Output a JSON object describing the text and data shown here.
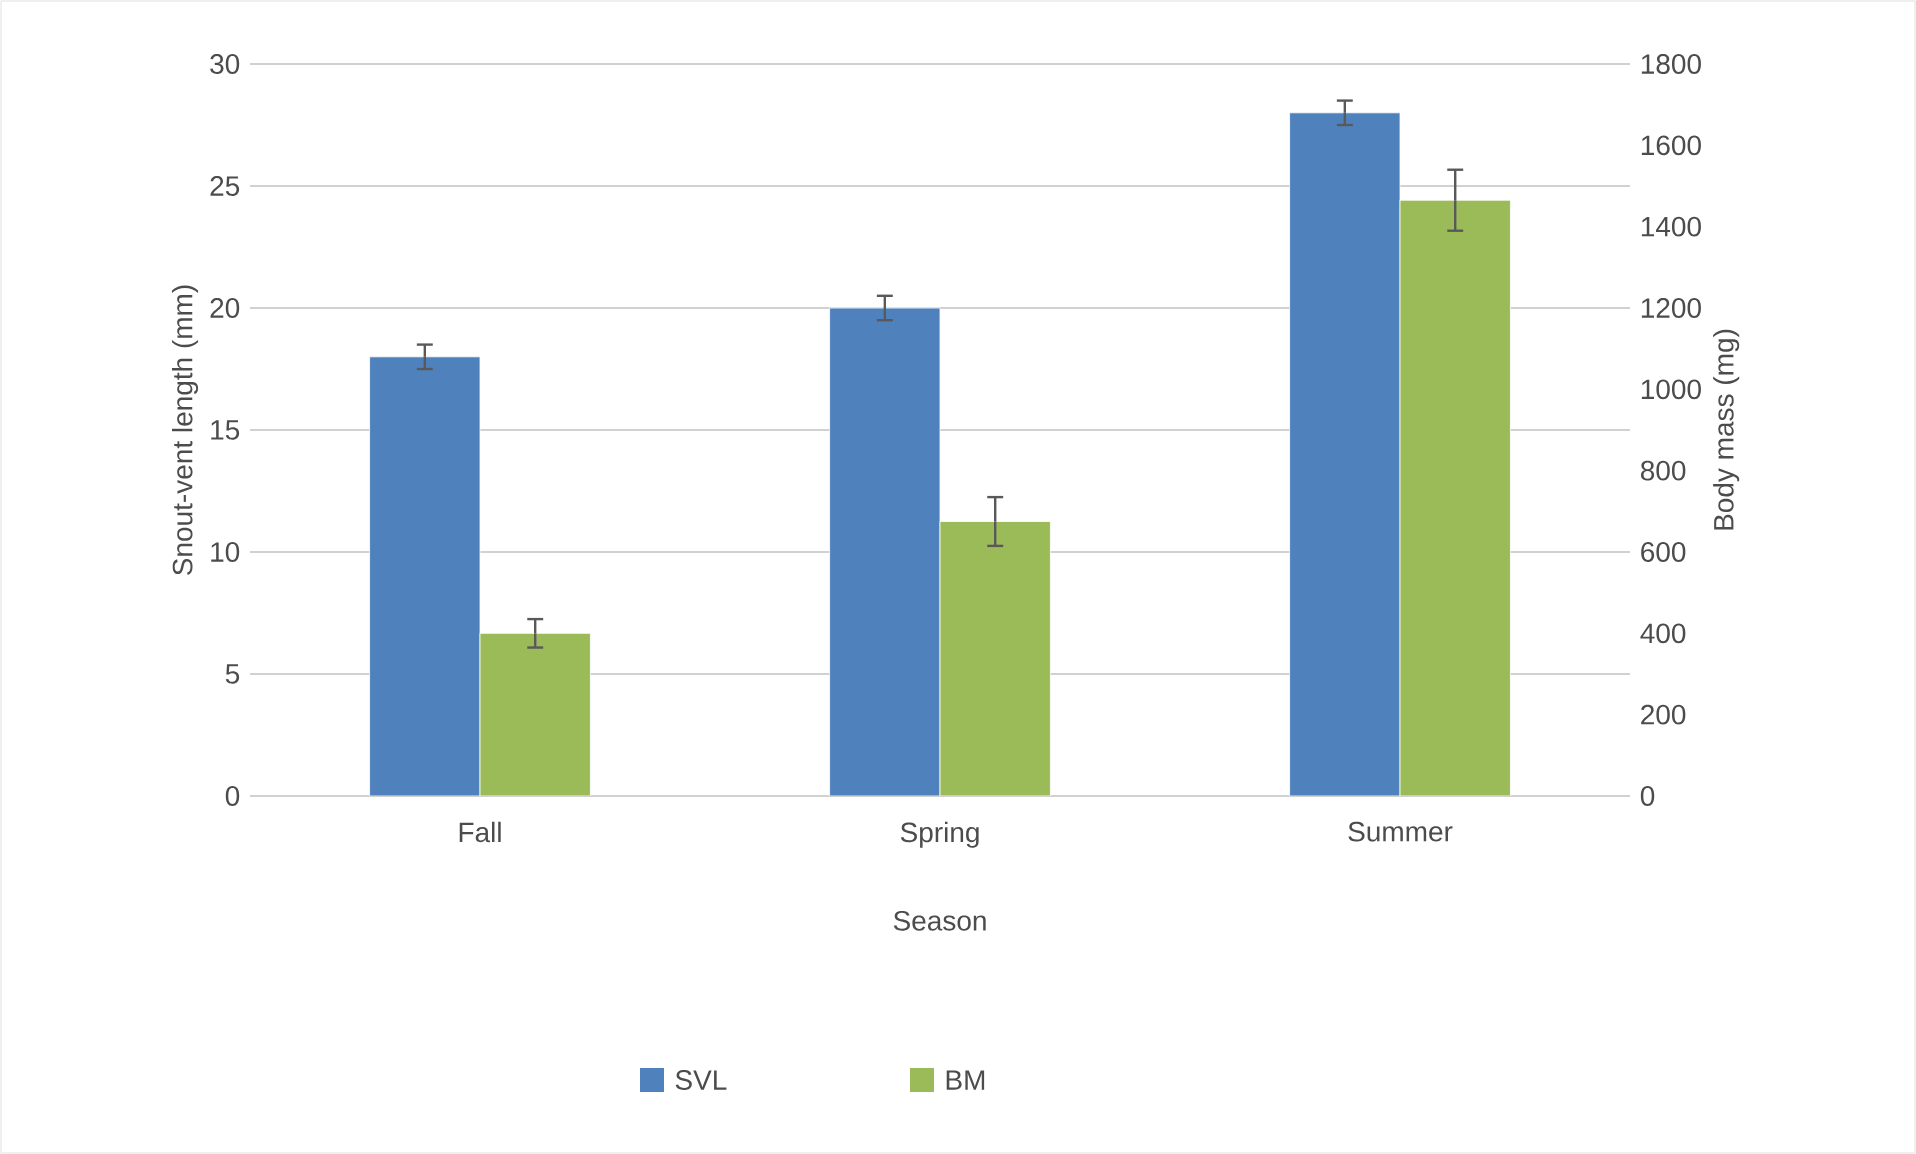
{
  "chart_data": {
    "type": "bar",
    "xlabel": "Season",
    "ylabel": "Snout-vent length (mm)",
    "y2label": "Body mass (mg)",
    "categories": [
      "Fall",
      "Spring",
      "Summer"
    ],
    "series": [
      {
        "name": "SVL",
        "color": "#4f81bd",
        "values": [
          18,
          20,
          28
        ],
        "errors": [
          0.5,
          0.5,
          0.5
        ]
      },
      {
        "name": "BM",
        "color": "#9bbb59",
        "axis": "y2",
        "values": [
          400,
          675,
          1465
        ],
        "errors": [
          35,
          60,
          75
        ]
      }
    ],
    "ylim": [
      0,
      30
    ],
    "yticks": [
      0,
      5,
      10,
      15,
      20,
      25,
      30
    ],
    "y2lim": [
      0,
      1800
    ],
    "y2ticks": [
      0,
      200,
      400,
      600,
      800,
      1000,
      1200,
      1400,
      1600,
      1800
    ],
    "grid": "y",
    "legend": "bottom"
  }
}
